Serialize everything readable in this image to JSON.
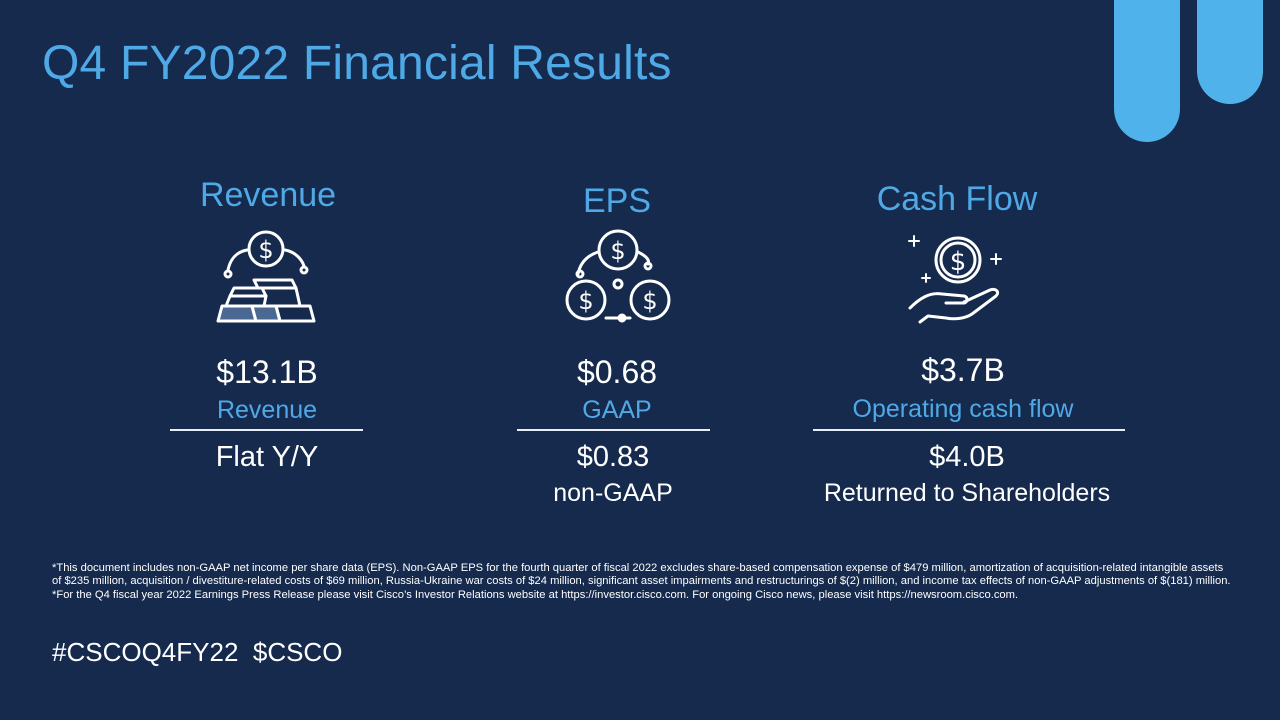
{
  "title": "Q4 FY2022 Financial Results",
  "columns": [
    {
      "heading": "Revenue",
      "icon": "gold-bars-dollar-icon",
      "primary_value": "$13.1B",
      "primary_label": "Revenue",
      "secondary_value": "Flat Y/Y",
      "secondary_label": ""
    },
    {
      "heading": "EPS",
      "icon": "three-coins-icon",
      "primary_value": "$0.68",
      "primary_label": "GAAP",
      "secondary_value": "$0.83",
      "secondary_label": "non-GAAP"
    },
    {
      "heading": "Cash Flow",
      "icon": "hand-holding-coin-icon",
      "primary_value": "$3.7B",
      "primary_label": "Operating cash flow",
      "secondary_value": "$4.0B",
      "secondary_label": "Returned to Shareholders"
    }
  ],
  "footnotes": [
    "*This document includes non-GAAP net income per share data (EPS). Non-GAAP EPS for the fourth quarter of fiscal 2022 excludes share-based compensation expense of $479 million, amortization of acquisition-related intangible assets of $235 million, acquisition / divestiture-related costs of $69 million, Russia-Ukraine war costs of $24 million, significant asset impairments and restructurings of $(2) million, and income tax effects of non-GAAP adjustments of $(181) million.",
    "*For the Q4 fiscal year 2022 Earnings Press Release please visit Cisco’s Investor Relations website at https://investor.cisco.com. For ongoing Cisco news, please visit https://newsroom.cisco.com."
  ],
  "hashtags": "#CSCOQ4FY22  $CSCO",
  "colors": {
    "background": "#152a4d",
    "accent": "#4fa9e6",
    "text": "#ffffff"
  }
}
